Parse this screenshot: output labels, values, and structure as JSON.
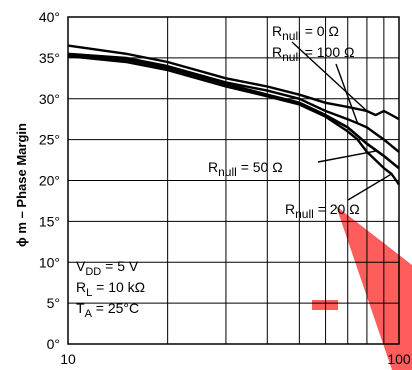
{
  "chart_data": {
    "type": "line",
    "ylabel": "ϕ m – Phase Margin",
    "x_scale": "log",
    "xlim": [
      10,
      100
    ],
    "ylim": [
      0,
      40
    ],
    "x_tick_labels": [
      "10",
      "100"
    ],
    "y_ticks": [
      0,
      5,
      10,
      15,
      20,
      25,
      30,
      35,
      40
    ],
    "y_tick_labels": [
      "0°",
      "5°",
      "10°",
      "15°",
      "20°",
      "25°",
      "30°",
      "35°",
      "40°"
    ],
    "grid": true,
    "series": [
      {
        "name": "Rₙᵤₗₗ = 0 Ω",
        "label_main": "R",
        "label_sub": "null",
        "label_val": " = 0 Ω",
        "x": [
          10,
          15,
          20,
          30,
          40,
          50,
          60,
          70,
          80,
          85,
          90,
          95,
          100
        ],
        "y": [
          36.5,
          35.5,
          34.5,
          32.5,
          31.5,
          30.5,
          29.5,
          29,
          28.5,
          28,
          28.5,
          28,
          27.5
        ]
      },
      {
        "name": "Rₙᵤₗₗ = 100 Ω",
        "label_main": "R",
        "label_sub": "null",
        "label_val": " = 100 Ω",
        "x": [
          10,
          15,
          20,
          30,
          40,
          50,
          60,
          70,
          75,
          80,
          90,
          100
        ],
        "y": [
          35.5,
          35,
          34,
          32,
          31,
          30,
          28.5,
          27.5,
          27,
          26.5,
          25,
          23.5
        ]
      },
      {
        "name": "Rₙᵤₗₗ = 50 Ω",
        "label_main": "R",
        "label_sub": "null",
        "label_val": " = 50 Ω",
        "x": [
          10,
          15,
          20,
          30,
          40,
          50,
          60,
          70,
          80,
          90,
          100
        ],
        "y": [
          35.3,
          34.8,
          33.8,
          31.8,
          30.5,
          29.5,
          28,
          26.5,
          24.5,
          23,
          21.5
        ]
      },
      {
        "name": "Rₙᵤₗₗ = 20 Ω",
        "label_main": "R",
        "label_sub": "null",
        "label_val": " = 20 Ω",
        "x": [
          10,
          15,
          20,
          30,
          40,
          50,
          60,
          70,
          75,
          80,
          85,
          90,
          95,
          100
        ],
        "y": [
          35.2,
          34.5,
          33.5,
          31.5,
          30.3,
          29.3,
          27.8,
          26,
          25,
          23.5,
          22.5,
          21.5,
          20.8,
          19.5
        ]
      }
    ],
    "conditions": [
      {
        "main": "V",
        "sub": "DD",
        "rest": " = 5 V"
      },
      {
        "main": "R",
        "sub": "L",
        "rest": " = 10 kΩ"
      },
      {
        "main": "T",
        "sub": "A",
        "rest": " = 25°C"
      }
    ]
  }
}
